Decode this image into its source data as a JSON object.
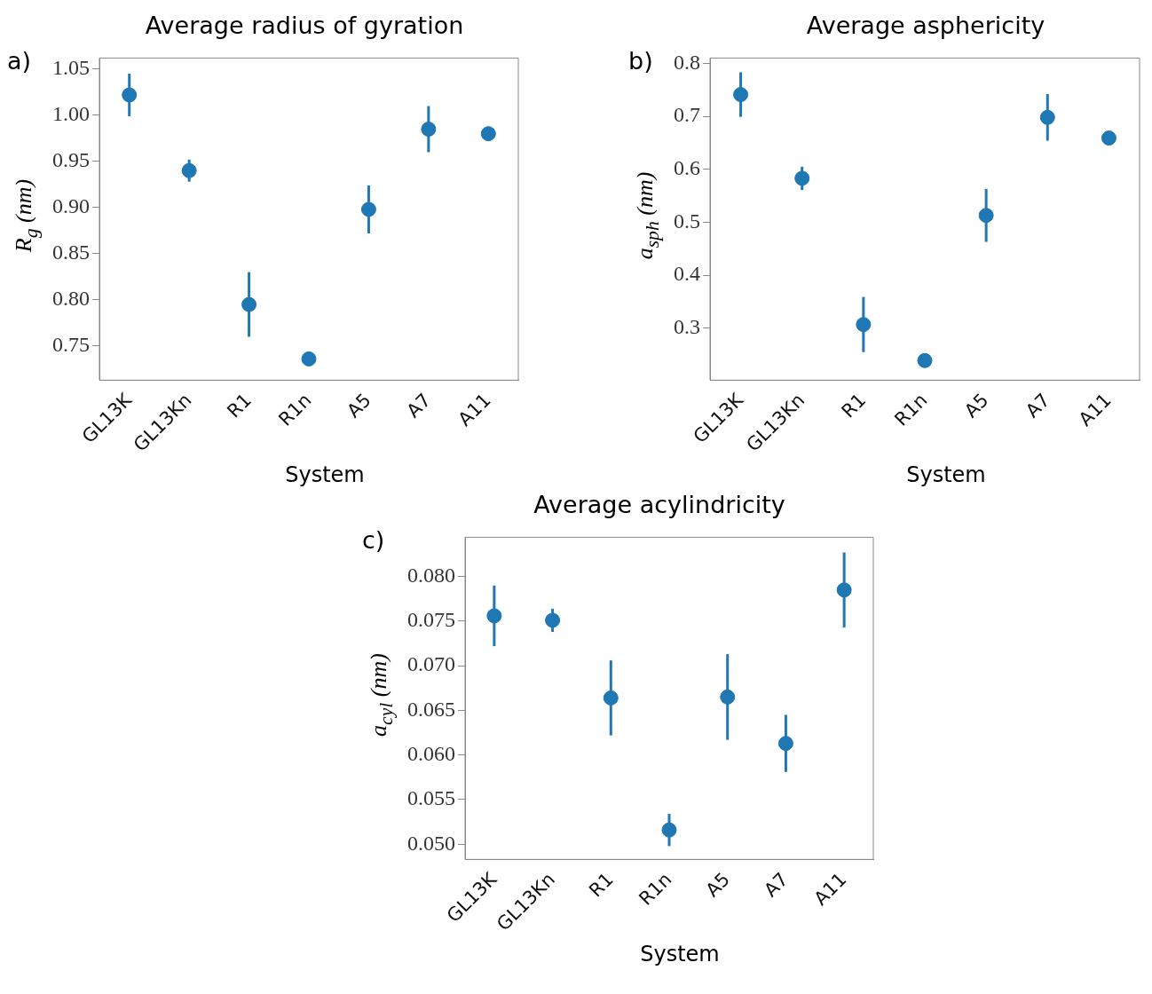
{
  "chart_data": [
    {
      "type": "scatter",
      "title": "Average radius of gyration",
      "xlabel": "System",
      "ylabel": "R$_{g}$ (nm)",
      "annotations": [
        "a)"
      ],
      "categories": [
        "GL13K",
        "GL13Kn",
        "R1",
        "R1n",
        "A5",
        "A7",
        "A11"
      ],
      "series": [
        {
          "color": "#1f77b4",
          "values": [
            1.022,
            0.94,
            0.795,
            0.736,
            0.898,
            0.985,
            0.98
          ],
          "errors": [
            0.023,
            0.012,
            0.035,
            0.004,
            0.026,
            0.025,
            0.004
          ]
        }
      ],
      "ylim": [
        0.713,
        1.062
      ],
      "yticks": [
        0.75,
        {
          "value": 0.8,
          "label": "0.80"
        },
        0.85,
        {
          "value": 0.9,
          "label": "0.90"
        },
        0.95,
        {
          "value": 1,
          "label": "1.00"
        },
        1.05
      ],
      "grid": false,
      "legend": false,
      "marker": "circle"
    },
    {
      "type": "scatter",
      "title": "Average asphericity",
      "xlabel": "System",
      "ylabel": "a$_{sph}$ (nm)",
      "annotations": [
        "b)"
      ],
      "categories": [
        "GL13K",
        "GL13Kn",
        "R1",
        "R1n",
        "A5",
        "A7",
        "A11"
      ],
      "series": [
        {
          "color": "#1f77b4",
          "values": [
            0.741,
            0.583,
            0.307,
            0.239,
            0.513,
            0.698,
            0.659
          ],
          "errors": [
            0.042,
            0.022,
            0.052,
            0.003,
            0.05,
            0.044,
            0.006
          ]
        }
      ],
      "ylim": [
        0.202,
        0.81
      ],
      "yticks": [
        0.3,
        0.4,
        0.5,
        0.6,
        0.7,
        0.8
      ],
      "grid": false,
      "legend": false,
      "marker": "circle"
    },
    {
      "type": "scatter",
      "title": "Average acylindricity",
      "xlabel": "System",
      "ylabel": "a$_{cyl}$ (nm)",
      "annotations": [
        "c)"
      ],
      "categories": [
        "GL13K",
        "GL13Kn",
        "R1",
        "R1n",
        "A5",
        "A7",
        "A11"
      ],
      "series": [
        {
          "color": "#1f77b4",
          "values": [
            0.0756,
            0.0751,
            0.0664,
            0.0516,
            0.0665,
            0.0613,
            0.0785
          ],
          "errors": [
            0.0034,
            0.0013,
            0.0042,
            0.0018,
            0.0048,
            0.0032,
            0.0042
          ]
        }
      ],
      "ylim": [
        0.0483,
        0.0844
      ],
      "yticks": [
        {
          "value": 0.05,
          "label": "0.050"
        },
        0.055,
        {
          "value": 0.06,
          "label": "0.060"
        },
        0.065,
        {
          "value": 0.07,
          "label": "0.070"
        },
        0.075,
        {
          "value": 0.08,
          "label": "0.080"
        }
      ],
      "grid": false,
      "legend": false,
      "marker": "circle"
    }
  ]
}
